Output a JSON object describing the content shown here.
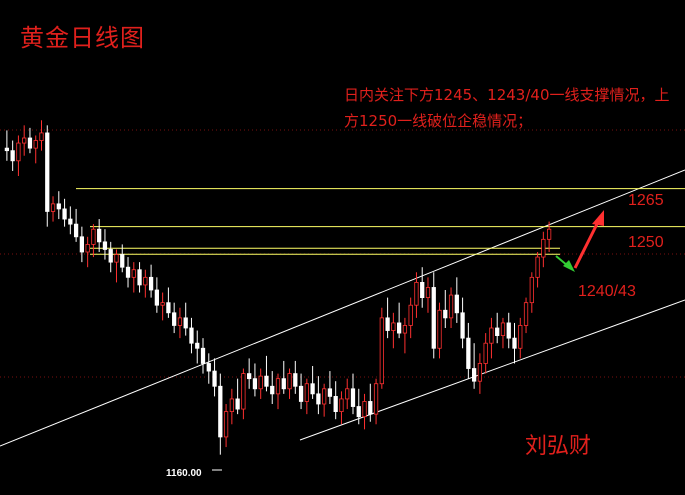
{
  "title": "黄金日线图",
  "annotation": "日内关注下方1245、1243/40一线支撑情况，上方1250一线破位企稳情况；",
  "author": "刘弘财",
  "chart_data": {
    "type": "candlestick",
    "title": "黄金日线图",
    "ylim": [
      1150,
      1300
    ],
    "levels": [
      {
        "label": "1265",
        "value": 1265
      },
      {
        "label": "1250",
        "value": 1250
      },
      {
        "label": "1240/43",
        "value": 1241.5
      }
    ],
    "low_label": "1160.00",
    "low_value": 1160,
    "colors": {
      "up": "#ff3030",
      "down": "#ffffff",
      "level": "#ffff66",
      "text": "#e0201c",
      "arrow_up": "#ff3030",
      "arrow_down": "#33cc33"
    },
    "ohlc": [
      [
        1281,
        1288,
        1276,
        1280
      ],
      [
        1280,
        1284,
        1272,
        1276
      ],
      [
        1276,
        1286,
        1270,
        1283
      ],
      [
        1283,
        1290,
        1278,
        1285
      ],
      [
        1285,
        1289,
        1279,
        1281
      ],
      [
        1281,
        1286,
        1275,
        1284
      ],
      [
        1284,
        1292,
        1280,
        1287
      ],
      [
        1287,
        1290,
        1250,
        1256
      ],
      [
        1256,
        1262,
        1252,
        1259
      ],
      [
        1259,
        1264,
        1253,
        1257
      ],
      [
        1257,
        1261,
        1250,
        1253
      ],
      [
        1253,
        1258,
        1247,
        1251
      ],
      [
        1251,
        1257,
        1244,
        1246
      ],
      [
        1246,
        1250,
        1236,
        1240
      ],
      [
        1240,
        1246,
        1234,
        1243
      ],
      [
        1243,
        1251,
        1238,
        1249
      ],
      [
        1249,
        1253,
        1240,
        1244
      ],
      [
        1244,
        1249,
        1237,
        1241
      ],
      [
        1241,
        1244,
        1232,
        1236
      ],
      [
        1236,
        1241,
        1228,
        1239
      ],
      [
        1239,
        1243,
        1232,
        1234
      ],
      [
        1234,
        1238,
        1226,
        1230
      ],
      [
        1230,
        1236,
        1224,
        1233
      ],
      [
        1233,
        1236,
        1224,
        1227
      ],
      [
        1227,
        1233,
        1222,
        1230
      ],
      [
        1230,
        1235,
        1222,
        1225
      ],
      [
        1225,
        1230,
        1216,
        1219
      ],
      [
        1219,
        1224,
        1213,
        1220
      ],
      [
        1220,
        1226,
        1214,
        1216
      ],
      [
        1216,
        1220,
        1208,
        1211
      ],
      [
        1211,
        1218,
        1206,
        1214
      ],
      [
        1214,
        1220,
        1207,
        1210
      ],
      [
        1210,
        1214,
        1200,
        1204
      ],
      [
        1204,
        1209,
        1196,
        1202
      ],
      [
        1202,
        1206,
        1192,
        1196
      ],
      [
        1196,
        1200,
        1188,
        1193
      ],
      [
        1193,
        1198,
        1183,
        1187
      ],
      [
        1187,
        1192,
        1160,
        1167
      ],
      [
        1167,
        1180,
        1163,
        1177
      ],
      [
        1177,
        1186,
        1172,
        1182
      ],
      [
        1182,
        1190,
        1176,
        1178
      ],
      [
        1178,
        1194,
        1174,
        1192
      ],
      [
        1192,
        1198,
        1186,
        1190
      ],
      [
        1190,
        1196,
        1183,
        1186
      ],
      [
        1186,
        1194,
        1182,
        1191
      ],
      [
        1191,
        1199,
        1185,
        1187
      ],
      [
        1187,
        1193,
        1180,
        1184
      ],
      [
        1184,
        1192,
        1178,
        1190
      ],
      [
        1190,
        1197,
        1184,
        1186
      ],
      [
        1186,
        1194,
        1182,
        1192
      ],
      [
        1192,
        1197,
        1184,
        1187
      ],
      [
        1187,
        1192,
        1178,
        1181
      ],
      [
        1181,
        1190,
        1176,
        1188
      ],
      [
        1188,
        1195,
        1182,
        1184
      ],
      [
        1184,
        1191,
        1176,
        1180
      ],
      [
        1180,
        1188,
        1175,
        1186
      ],
      [
        1186,
        1193,
        1180,
        1183
      ],
      [
        1183,
        1189,
        1174,
        1177
      ],
      [
        1177,
        1185,
        1172,
        1182
      ],
      [
        1182,
        1190,
        1178,
        1186
      ],
      [
        1186,
        1192,
        1176,
        1179
      ],
      [
        1179,
        1186,
        1172,
        1175
      ],
      [
        1175,
        1184,
        1170,
        1181
      ],
      [
        1181,
        1188,
        1173,
        1176
      ],
      [
        1176,
        1190,
        1172,
        1188
      ],
      [
        1188,
        1218,
        1186,
        1214
      ],
      [
        1214,
        1222,
        1206,
        1209
      ],
      [
        1209,
        1216,
        1202,
        1212
      ],
      [
        1212,
        1220,
        1206,
        1208
      ],
      [
        1208,
        1214,
        1200,
        1211
      ],
      [
        1211,
        1222,
        1206,
        1219
      ],
      [
        1219,
        1232,
        1214,
        1228
      ],
      [
        1228,
        1234,
        1218,
        1222
      ],
      [
        1222,
        1230,
        1216,
        1226
      ],
      [
        1226,
        1232,
        1198,
        1202
      ],
      [
        1202,
        1220,
        1198,
        1217
      ],
      [
        1217,
        1225,
        1210,
        1214
      ],
      [
        1214,
        1226,
        1210,
        1223
      ],
      [
        1223,
        1230,
        1212,
        1216
      ],
      [
        1216,
        1222,
        1202,
        1206
      ],
      [
        1206,
        1212,
        1190,
        1194
      ],
      [
        1194,
        1204,
        1186,
        1189
      ],
      [
        1189,
        1200,
        1184,
        1196
      ],
      [
        1196,
        1208,
        1192,
        1204
      ],
      [
        1204,
        1214,
        1198,
        1210
      ],
      [
        1210,
        1216,
        1204,
        1207
      ],
      [
        1207,
        1214,
        1202,
        1212
      ],
      [
        1212,
        1216,
        1202,
        1206
      ],
      [
        1206,
        1212,
        1196,
        1202
      ],
      [
        1202,
        1214,
        1198,
        1211
      ],
      [
        1211,
        1222,
        1208,
        1220
      ],
      [
        1220,
        1232,
        1216,
        1230
      ],
      [
        1230,
        1240,
        1226,
        1238
      ],
      [
        1238,
        1248,
        1234,
        1245
      ],
      [
        1245,
        1252,
        1240,
        1249
      ]
    ]
  }
}
